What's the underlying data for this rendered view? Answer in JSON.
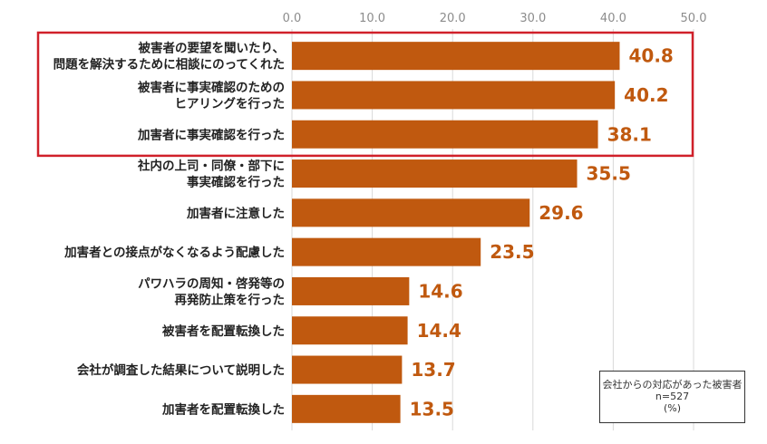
{
  "chart_data": {
    "type": "bar",
    "orientation": "horizontal",
    "categories": [
      [
        "被害者の要望を聞いたり、",
        "問題を解決するために相談にのってくれた"
      ],
      [
        "被害者に事実確認のための",
        "ヒアリングを行った"
      ],
      [
        "加害者に事実確認を行った"
      ],
      [
        "社内の上司・同僚・部下に",
        "事実確認を行った"
      ],
      [
        "加害者に注意した"
      ],
      [
        "加害者との接点がなくなるよう配慮した"
      ],
      [
        "パワハラの周知・啓発等の",
        "再発防止策を行った"
      ],
      [
        "被害者を配置転換した"
      ],
      [
        "会社が調査した結果について説明した"
      ],
      [
        "加害者を配置転換した"
      ]
    ],
    "values": [
      40.8,
      40.2,
      38.1,
      35.5,
      29.6,
      23.5,
      14.6,
      14.4,
      13.7,
      13.5
    ],
    "value_labels": [
      "40.8",
      "40.2",
      "38.1",
      "35.5",
      "29.6",
      "23.5",
      "14.6",
      "14.4",
      "13.7",
      "13.5"
    ],
    "xlim": [
      0,
      50
    ],
    "xticks": [
      "0.0",
      "10.0",
      "20.0",
      "30.0",
      "40.0",
      "50.0"
    ],
    "tick_position": "top",
    "grid": true,
    "highlighted_categories": [
      0,
      1,
      2
    ],
    "colors": {
      "bar": "#c0590f",
      "value_label": "#c0590f",
      "highlight_box": "#d0202a",
      "grid": "#d9d9d9"
    }
  },
  "note": {
    "line1": "会社からの対応があった被害者",
    "line2": "n=527",
    "line3": "(%)"
  }
}
